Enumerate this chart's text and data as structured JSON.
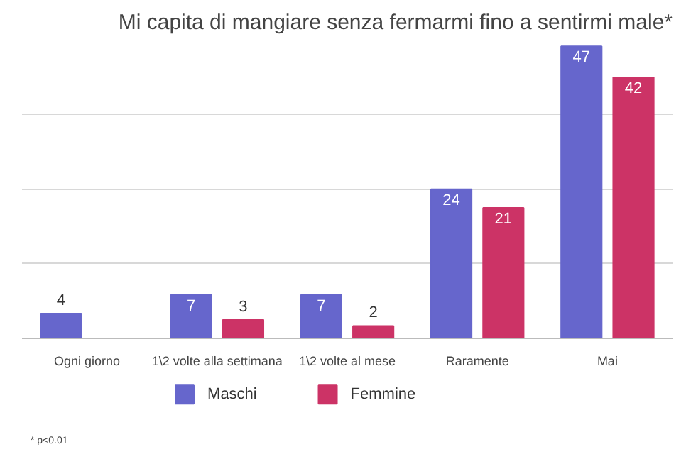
{
  "chart_data": {
    "type": "bar",
    "title": "Mi capita di mangiare senza fermarmi fino a sentirmi male*",
    "categories": [
      "Ogni giorno",
      "1\\2 volte alla settimana",
      "1\\2 volte al mese",
      "Raramente",
      "Mai"
    ],
    "series": [
      {
        "name": "Maschi",
        "color": "#6666cc",
        "values": [
          4,
          7,
          7,
          24,
          47
        ]
      },
      {
        "name": "Femmine",
        "color": "#cc3366",
        "values": [
          null,
          3,
          2,
          21,
          42
        ]
      }
    ],
    "yticks": [
      {
        "value": 0,
        "label": null
      },
      {
        "value": 12,
        "label": null
      },
      {
        "value": 24,
        "label": null
      },
      {
        "value": 36,
        "label": null
      }
    ],
    "grid": "y",
    "data_labels": true,
    "legend": "bottom",
    "tick_labels": "x",
    "annotations": [
      "* p<0.01"
    ]
  }
}
